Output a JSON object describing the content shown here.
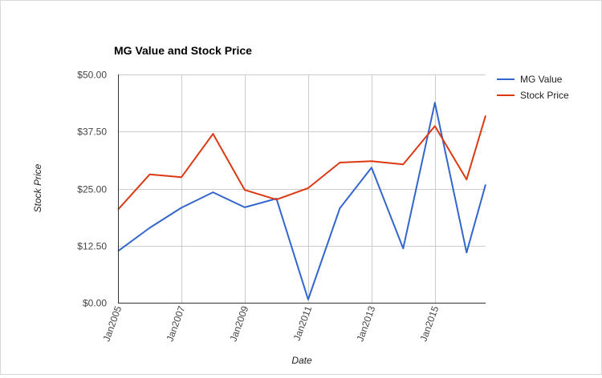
{
  "chart_data": {
    "type": "line",
    "title": "MG Value and Stock Price",
    "xlabel": "Date",
    "ylabel": "Stock Price",
    "ylim": [
      0,
      50
    ],
    "y_ticks": [
      "$0.00",
      "$12.50",
      "$25.00",
      "$37.50",
      "$50.00"
    ],
    "y_tick_values": [
      0,
      12.5,
      25,
      37.5,
      50
    ],
    "x_range": [
      2005,
      2016.6
    ],
    "x_ticks": [
      "Jan2005",
      "Jan2007",
      "Jan2009",
      "Jan2011",
      "Jan2013",
      "Jan2015"
    ],
    "x_tick_values": [
      2005,
      2007,
      2009,
      2011,
      2013,
      2015
    ],
    "grid": true,
    "legend_position": "right",
    "x": [
      2005,
      2006,
      2007,
      2008,
      2009,
      2010,
      2011,
      2012,
      2013,
      2014,
      2015,
      2016,
      2016.6
    ],
    "series": [
      {
        "name": "MG Value",
        "color": "#3366cc",
        "values": [
          11.3,
          16.4,
          20.8,
          24.2,
          20.9,
          22.8,
          0.7,
          20.7,
          29.6,
          11.9,
          43.8,
          11.0,
          25.9
        ]
      },
      {
        "name": "Stock Price",
        "color": "#dc3912",
        "values": [
          20.4,
          28.1,
          27.5,
          37.0,
          24.7,
          22.6,
          25.1,
          30.7,
          31.0,
          30.3,
          38.7,
          27.0,
          41.0
        ]
      }
    ]
  }
}
